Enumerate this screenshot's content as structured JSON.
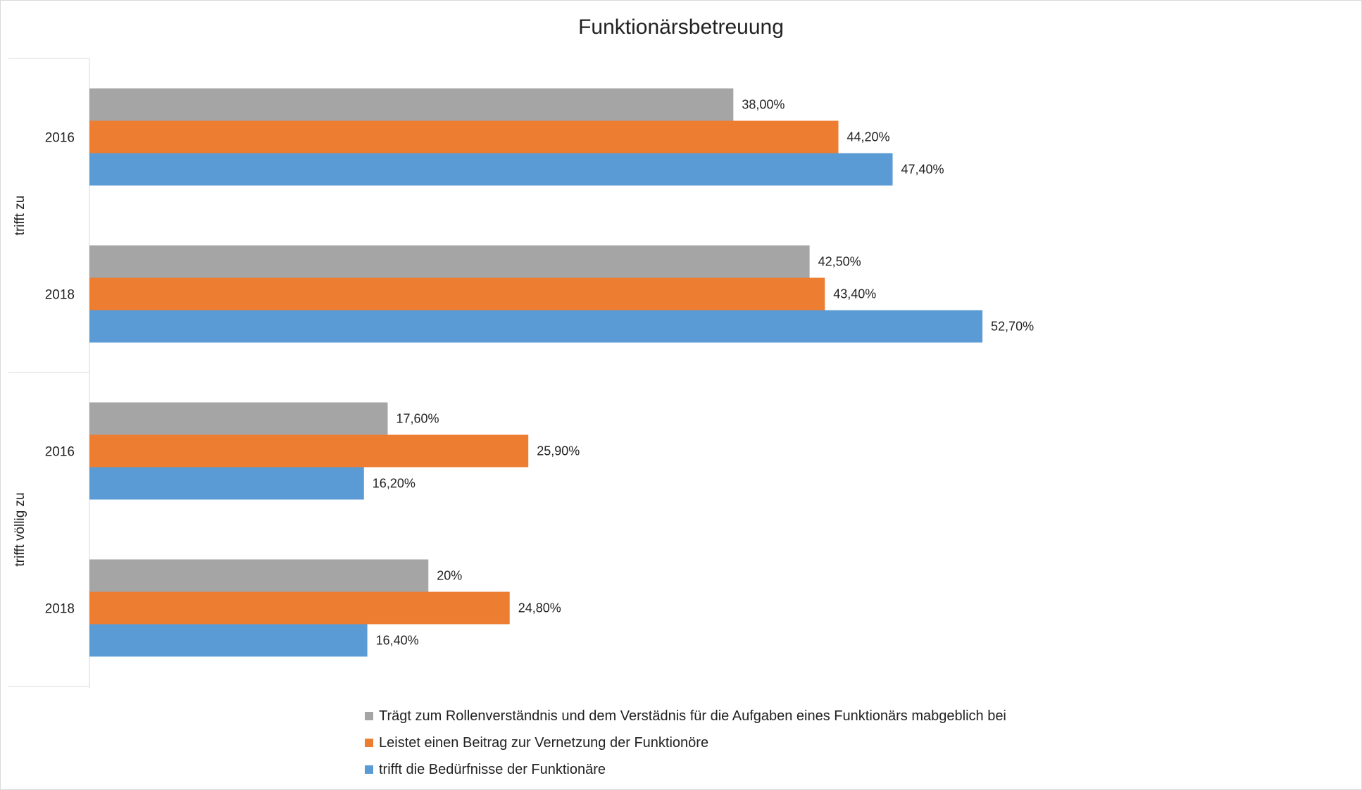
{
  "chart_data": {
    "type": "bar",
    "orientation": "horizontal",
    "title": "Funktionärsbetreuung",
    "xlim": [
      0,
      60
    ],
    "grid": false,
    "legend_position": "bottom",
    "groups": [
      {
        "label": "trifft zu",
        "categories": [
          {
            "label": "2016",
            "values": [
              38.0,
              44.2,
              47.4
            ],
            "value_labels": [
              "38,00%",
              "44,20%",
              "47,40%"
            ]
          },
          {
            "label": "2018",
            "values": [
              42.5,
              43.4,
              52.7
            ],
            "value_labels": [
              "42,50%",
              "43,40%",
              "52,70%"
            ]
          }
        ]
      },
      {
        "label": "trifft völlig zu",
        "categories": [
          {
            "label": "2016",
            "values": [
              17.6,
              25.9,
              16.2
            ],
            "value_labels": [
              "17,60%",
              "25,90%",
              "16,20%"
            ]
          },
          {
            "label": "2018",
            "values": [
              20.0,
              24.8,
              16.4
            ],
            "value_labels": [
              "20%",
              "24,80%",
              "16,40%"
            ]
          }
        ]
      }
    ],
    "series": [
      {
        "name": "Trägt zum Rollenverständnis und dem Verstädnis für die Aufgaben eines Funktionärs mabgeblich bei",
        "color": "#a5a5a5"
      },
      {
        "name": "Leistet einen Beitrag zur Vernetzung der Funktionöre",
        "color": "#ed7d31"
      },
      {
        "name": "trifft die Bedürfnisse der Funktionäre",
        "color": "#5b9bd5"
      }
    ]
  }
}
